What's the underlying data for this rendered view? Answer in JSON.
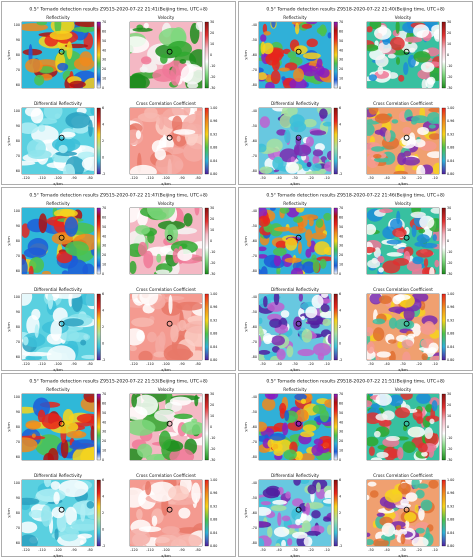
{
  "panels": [
    {
      "title": "0.5° Tornado detection results Z9515-2020-07-22 21:41(Beijing time, UTC+8)",
      "x_label": "x/km",
      "y_label": "y/km",
      "x_ticks": [
        "-120",
        "-110",
        "-100",
        "-90",
        "-80"
      ],
      "y_ticks": [
        "100",
        "90",
        "80",
        "70",
        "60"
      ],
      "subplots": [
        {
          "title": "Reflectivity",
          "colorbar_ticks": [
            "70",
            "60",
            "50",
            "40",
            "30",
            "20",
            "10",
            "0"
          ]
        },
        {
          "title": "Velocity",
          "colorbar_ticks": [
            "30",
            "20",
            "10",
            "0",
            "-10",
            "-20",
            "-30"
          ]
        },
        {
          "title": "Differential Reflectivity",
          "colorbar_ticks": [
            "6",
            "4",
            "2",
            "0",
            "-2"
          ]
        },
        {
          "title": "Cross Correlation Coefficient",
          "colorbar_ticks": [
            "1.00",
            "0.96",
            "0.92",
            "0.88",
            "0.84",
            "0.80"
          ]
        }
      ]
    },
    {
      "title": "0.5° Tornado detection results Z9518-2020-07-22 21:40(Beijing time, UTC+8)",
      "x_label": "x/km",
      "y_label": "y/km",
      "x_ticks": [
        "-50",
        "-40",
        "-30",
        "-20",
        "-10"
      ],
      "y_ticks": [
        "-40",
        "-50",
        "-60",
        "-70",
        "-80"
      ],
      "subplots": [
        {
          "title": "Reflectivity",
          "colorbar_ticks": [
            "70",
            "60",
            "50",
            "40",
            "30",
            "20",
            "10",
            "0"
          ]
        },
        {
          "title": "Velocity",
          "colorbar_ticks": [
            "30",
            "20",
            "10",
            "0",
            "-10",
            "-20",
            "-30"
          ]
        },
        {
          "title": "Differential Reflectivity",
          "colorbar_ticks": [
            "6",
            "4",
            "2",
            "0",
            "-2"
          ]
        },
        {
          "title": "Cross Correlation Coefficient",
          "colorbar_ticks": [
            "1.00",
            "0.96",
            "0.92",
            "0.88",
            "0.84",
            "0.80"
          ]
        }
      ]
    },
    {
      "title": "0.5° Tornado detection results Z9515-2020-07-22 21:47(Beijing time, UTC+8)",
      "x_label": "x/km",
      "y_label": "y/km",
      "x_ticks": [
        "-120",
        "-110",
        "-100",
        "-90",
        "-80"
      ],
      "y_ticks": [
        "100",
        "90",
        "80",
        "70",
        "60"
      ],
      "subplots": [
        {
          "title": "Reflectivity",
          "colorbar_ticks": [
            "70",
            "60",
            "50",
            "40",
            "30",
            "20",
            "10",
            "0"
          ]
        },
        {
          "title": "Velocity",
          "colorbar_ticks": [
            "30",
            "20",
            "10",
            "0",
            "-10",
            "-20",
            "-30"
          ]
        },
        {
          "title": "Differential Reflectivity",
          "colorbar_ticks": [
            "6",
            "4",
            "2",
            "0",
            "-2"
          ]
        },
        {
          "title": "Cross Correlation Coefficient",
          "colorbar_ticks": [
            "1.00",
            "0.96",
            "0.92",
            "0.88",
            "0.84",
            "0.80"
          ]
        }
      ]
    },
    {
      "title": "0.5° Tornado detection results Z9518-2020-07-22 21:46(Beijing time, UTC+8)",
      "x_label": "x/km",
      "y_label": "y/km",
      "x_ticks": [
        "-50",
        "-40",
        "-30",
        "-20",
        "-10"
      ],
      "y_ticks": [
        "-40",
        "-50",
        "-60",
        "-70",
        "-80"
      ],
      "subplots": [
        {
          "title": "Reflectivity",
          "colorbar_ticks": [
            "70",
            "60",
            "50",
            "40",
            "30",
            "20",
            "10",
            "0"
          ]
        },
        {
          "title": "Velocity",
          "colorbar_ticks": [
            "30",
            "20",
            "10",
            "0",
            "-10",
            "-20",
            "-30"
          ]
        },
        {
          "title": "Differential Reflectivity",
          "colorbar_ticks": [
            "6",
            "4",
            "2",
            "0",
            "-2"
          ]
        },
        {
          "title": "Cross Correlation Coefficient",
          "colorbar_ticks": [
            "1.00",
            "0.96",
            "0.92",
            "0.88",
            "0.84",
            "0.80"
          ]
        }
      ]
    },
    {
      "title": "0.5° Tornado detection results Z9515-2020-07-22 21:53(Beijing time, UTC+8)",
      "x_label": "x/km",
      "y_label": "y/km",
      "x_ticks": [
        "-120",
        "-110",
        "-100",
        "-90",
        "-80"
      ],
      "y_ticks": [
        "100",
        "90",
        "80",
        "70",
        "60"
      ],
      "subplots": [
        {
          "title": "Reflectivity",
          "colorbar_ticks": [
            "70",
            "60",
            "50",
            "40",
            "30",
            "20",
            "10",
            "0"
          ]
        },
        {
          "title": "Velocity",
          "colorbar_ticks": [
            "30",
            "20",
            "10",
            "0",
            "-10",
            "-20",
            "-30"
          ]
        },
        {
          "title": "Differential Reflectivity",
          "colorbar_ticks": [
            "6",
            "4",
            "2",
            "0",
            "-2"
          ]
        },
        {
          "title": "Cross Correlation Coefficient",
          "colorbar_ticks": [
            "1.00",
            "0.96",
            "0.92",
            "0.88",
            "0.84",
            "0.80"
          ]
        }
      ]
    },
    {
      "title": "0.5° Tornado detection results Z9518-2020-07-22 21:51(Beijing time, UTC+8)",
      "x_label": "x/km",
      "y_label": "y/km",
      "x_ticks": [
        "-50",
        "-40",
        "-30",
        "-20",
        "-10"
      ],
      "y_ticks": [
        "-40",
        "-50",
        "-60",
        "-70",
        "-80"
      ],
      "subplots": [
        {
          "title": "Reflectivity",
          "colorbar_ticks": [
            "70",
            "60",
            "50",
            "40",
            "30",
            "20",
            "10",
            "0"
          ]
        },
        {
          "title": "Velocity",
          "colorbar_ticks": [
            "30",
            "20",
            "10",
            "0",
            "-10",
            "-20",
            "-30"
          ]
        },
        {
          "title": "Differential Reflectivity",
          "colorbar_ticks": [
            "6",
            "4",
            "2",
            "0",
            "-2"
          ]
        },
        {
          "title": "Cross Correlation Coefficient",
          "colorbar_ticks": [
            "1.00",
            "0.96",
            "0.92",
            "0.88",
            "0.84",
            "0.80"
          ]
        }
      ]
    }
  ]
}
